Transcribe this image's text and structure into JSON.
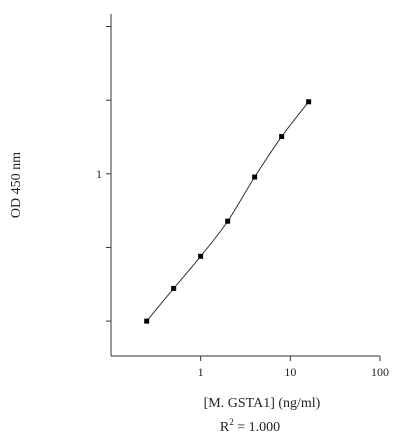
{
  "chart_data": {
    "type": "scatter",
    "xlabel": "[M. GSTA1] (ng/ml)",
    "ylabel": "OD 450 nm",
    "annotation": {
      "text_prefix": "R",
      "superscript": "2",
      "text_suffix": " = 1.000"
    },
    "x_scale": "log",
    "y_scale": "log",
    "xlim": [
      0.1,
      100
    ],
    "ylim": [
      0.18,
      4.5
    ],
    "x_ticks": [
      1,
      10,
      100
    ],
    "x_tick_labels": [
      "1",
      "10",
      "100"
    ],
    "y_ticks_labeled": [
      1
    ],
    "y_tick_labels": [
      "1"
    ],
    "y_ticks_unlabeled": [
      0.25,
      0.5,
      2,
      4
    ],
    "grid": false,
    "legend": "none",
    "line_color": "#333333",
    "marker_color": "#000000",
    "series": [
      {
        "x": [
          0.25,
          0.5,
          1,
          2,
          4,
          8,
          16
        ],
        "y": [
          0.25,
          0.34,
          0.46,
          0.64,
          0.97,
          1.42,
          1.97
        ]
      }
    ]
  }
}
